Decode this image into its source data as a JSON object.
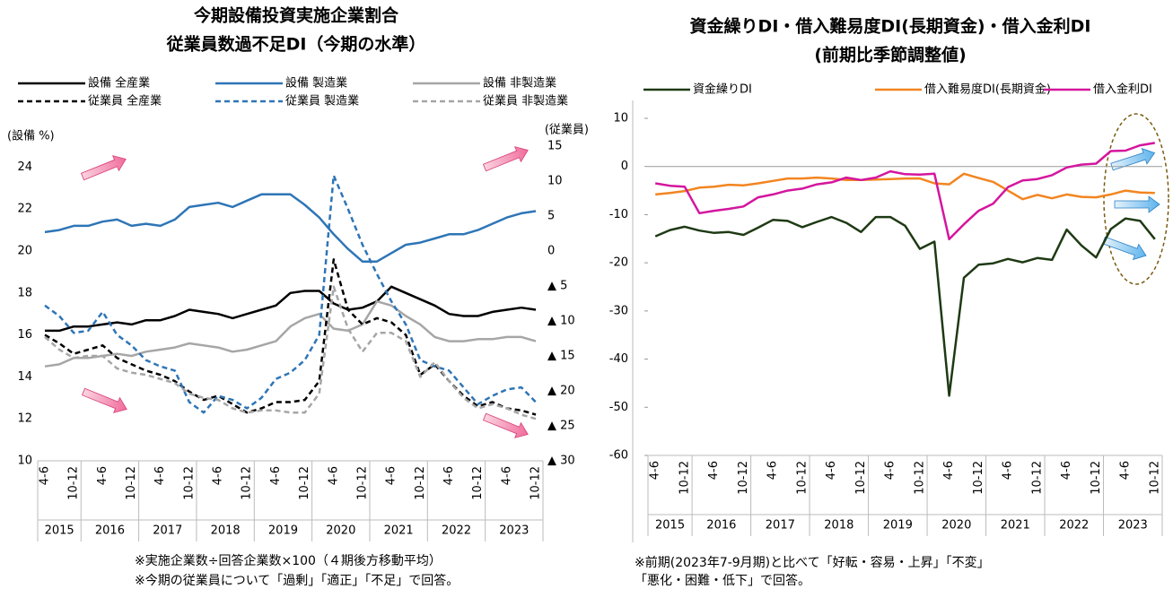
{
  "chart_data": [
    {
      "type": "line",
      "title": [
        "今期設備投資実施企業割合",
        "従業員数過不足DI（今期の水準）"
      ],
      "ylabel": "(設備 %)",
      "y2label": "(従業員)",
      "categories": [
        "4-6",
        null,
        "10-12",
        null,
        "4-6",
        null,
        "10-12",
        null,
        "4-6",
        null,
        "10-12",
        null,
        "4-6",
        null,
        "10-12",
        null,
        "4-6",
        null,
        "10-12",
        null,
        "4-6",
        null,
        "10-12",
        null,
        "4-6",
        null,
        "10-12",
        null,
        "4-6",
        null,
        "10-12",
        null,
        "4-6",
        null,
        "10-12"
      ],
      "years": [
        "2015",
        "2016",
        "2017",
        "2018",
        "2019",
        "2020",
        "2021",
        "2022",
        "2023"
      ],
      "ylim": [
        10,
        25
      ],
      "yticks": [
        10,
        12,
        14,
        16,
        18,
        20,
        22,
        24
      ],
      "y2lim": [
        -30,
        15
      ],
      "y2ticks": [
        15,
        10,
        5,
        0,
        {
          "value": -5,
          "label": "▲ 5"
        },
        {
          "value": -10,
          "label": "▲ 10"
        },
        {
          "value": -15,
          "label": "▲ 15"
        },
        {
          "value": -20,
          "label": "▲ 20"
        },
        {
          "value": -25,
          "label": "▲ 25"
        },
        {
          "value": -30,
          "label": "▲ 30"
        }
      ],
      "grid": false,
      "series": [
        {
          "name": "設備 全産業",
          "color": "#000000",
          "style": "solid",
          "values": [
            16.2,
            16.2,
            16.4,
            16.4,
            16.5,
            16.6,
            16.5,
            16.7,
            16.7,
            16.9,
            17.2,
            17.1,
            17.0,
            16.8,
            17.0,
            17.2,
            17.4,
            18.0,
            18.1,
            18.1,
            17.5,
            17.2,
            17.3,
            17.6,
            18.3,
            18.0,
            17.7,
            17.4,
            17.0,
            16.9,
            16.9,
            17.1,
            17.2,
            17.3,
            17.2
          ]
        },
        {
          "name": "設備 製造業",
          "color": "#2e75b6",
          "style": "solid",
          "values": [
            20.9,
            21.0,
            21.2,
            21.2,
            21.4,
            21.5,
            21.2,
            21.3,
            21.2,
            21.5,
            22.1,
            22.2,
            22.3,
            22.1,
            22.4,
            22.7,
            22.7,
            22.7,
            22.2,
            21.6,
            20.8,
            20.1,
            19.5,
            19.5,
            19.9,
            20.3,
            20.4,
            20.6,
            20.8,
            20.8,
            21.0,
            21.3,
            21.6,
            21.8,
            21.9
          ]
        },
        {
          "name": "設備 非製造業",
          "color": "#a6a6a6",
          "style": "solid",
          "values": [
            14.5,
            14.6,
            14.9,
            14.9,
            15.0,
            15.1,
            15.0,
            15.2,
            15.3,
            15.4,
            15.6,
            15.5,
            15.4,
            15.2,
            15.3,
            15.5,
            15.7,
            16.4,
            16.8,
            17.0,
            16.3,
            16.2,
            16.5,
            17.6,
            17.4,
            16.9,
            16.5,
            15.9,
            15.7,
            15.7,
            15.8,
            15.8,
            15.9,
            15.9,
            15.7
          ]
        },
        {
          "name": "従業員 全産業",
          "color": "#000000",
          "style": "dashed",
          "axis": "y2",
          "values": [
            -12,
            -13.2,
            -14.7,
            -14.1,
            -13.5,
            -15.3,
            -16.2,
            -17.1,
            -17.7,
            -18.6,
            -20.1,
            -21.3,
            -20.7,
            -21.9,
            -23.1,
            -22.5,
            -21.6,
            -21.6,
            -21.3,
            -18.6,
            -1.2,
            -8.4,
            -10.5,
            -9.6,
            -10.2,
            -12,
            -17.7,
            -16.2,
            -18.6,
            -20.7,
            -22.2,
            -21.6,
            -22.5,
            -22.8,
            -23.4
          ]
        },
        {
          "name": "従業員 製造業",
          "color": "#2e75b6",
          "style": "dashed",
          "axis": "y2",
          "values": [
            -7.8,
            -9.3,
            -11.7,
            -11.4,
            -8.7,
            -12,
            -13.5,
            -15.6,
            -16.5,
            -17.1,
            -21.6,
            -23.1,
            -20.7,
            -21.3,
            -22.5,
            -21,
            -18.3,
            -17.4,
            -15.6,
            -12,
            10.8,
            6,
            0.9,
            -3.3,
            -7.2,
            -10.5,
            -15.6,
            -16.5,
            -17.1,
            -19.5,
            -21.9,
            -20.7,
            -19.8,
            -19.5,
            -21.6
          ]
        },
        {
          "name": "従業員 非製造業",
          "color": "#a6a6a6",
          "style": "dashed",
          "axis": "y2",
          "values": [
            -12.3,
            -14.1,
            -15.3,
            -15,
            -15,
            -16.8,
            -17.4,
            -17.7,
            -18.3,
            -18.9,
            -20.4,
            -21,
            -21.3,
            -22.5,
            -23.1,
            -22.8,
            -22.8,
            -23.1,
            -23.1,
            -20.4,
            -5.1,
            -11.1,
            -14.4,
            -11.7,
            -11.7,
            -12.9,
            -18,
            -15.9,
            -18.6,
            -21,
            -22.5,
            -21.9,
            -22.5,
            -23.4,
            -24
          ]
        }
      ],
      "notes": [
        "※実施企業数÷回答企業数×100（４期後方移動平均）",
        "※今期の従業員について「過剰」「適正」「不足」で回答。"
      ]
    },
    {
      "type": "line",
      "title": [
        "資金繰りDI・借入難易度DI(長期資金)・借入金利DI",
        "(前期比季節調整値)"
      ],
      "categories": [
        "4-6",
        null,
        "10-12",
        null,
        "4-6",
        null,
        "10-12",
        null,
        "4-6",
        null,
        "10-12",
        null,
        "4-6",
        null,
        "10-12",
        null,
        "4-6",
        null,
        "10-12",
        null,
        "4-6",
        null,
        "10-12",
        null,
        "4-6",
        null,
        "10-12",
        null,
        "4-6",
        null,
        "10-12",
        null,
        "4-6",
        null,
        "10-12"
      ],
      "years": [
        "2015",
        "2016",
        "2017",
        "2018",
        "2019",
        "2020",
        "2021",
        "2022",
        "2023"
      ],
      "ylim": [
        -60,
        10
      ],
      "yticks": [
        10,
        0,
        -10,
        -20,
        -30,
        -40,
        -50,
        -60
      ],
      "grid": false,
      "series": [
        {
          "name": "資金繰りDI",
          "color": "#1e3a14",
          "values": [
            -14.5,
            -13.2,
            -12.5,
            -13.3,
            -13.8,
            -13.6,
            -14.2,
            -12.7,
            -11.1,
            -11.3,
            -12.6,
            -11.5,
            -10.5,
            -11.7,
            -13.6,
            -10.5,
            -10.5,
            -12.3,
            -17.1,
            -15.6,
            -47.6,
            -23.1,
            -20.4,
            -20.1,
            -19.2,
            -19.9,
            -19.0,
            -19.4,
            -13.1,
            -16.4,
            -18.9,
            -13.0,
            -10.8,
            -11.3,
            -15.1
          ]
        },
        {
          "name": "借入難易度DI(長期資金)",
          "color": "#f28520",
          "values": [
            -5.8,
            -5.5,
            -5.1,
            -4.4,
            -4.2,
            -3.8,
            -3.9,
            -3.5,
            -3,
            -2.5,
            -2.5,
            -2.3,
            -2.5,
            -2.8,
            -2.8,
            -2.7,
            -2.6,
            -2.5,
            -2.5,
            -3.5,
            -3.7,
            -1.5,
            -2.4,
            -3.2,
            -5,
            -6.8,
            -5.9,
            -6.6,
            -5.8,
            -6.3,
            -6.4,
            -5.8,
            -5,
            -5.4,
            -5.5
          ]
        },
        {
          "name": "借入金利DI",
          "color": "#d4159e",
          "values": [
            -3.5,
            -4,
            -4.2,
            -9.7,
            -9.2,
            -8.8,
            -8.3,
            -6.4,
            -5.8,
            -5,
            -4.6,
            -3.7,
            -3.3,
            -2.3,
            -2.8,
            -2.3,
            -1,
            -1.6,
            -1.7,
            -1.5,
            -15.1,
            -12,
            -9.2,
            -7.7,
            -4.3,
            -2.9,
            -2.6,
            -1.8,
            -0.2,
            0.4,
            0.6,
            3.2,
            3.3,
            4.4,
            4.9
          ]
        }
      ],
      "notes": [
        "※前期(2023年7-9月期)と比べて「好転・容易・上昇」「不変」",
        "「悪化・困難・低下」で回答。"
      ]
    }
  ]
}
